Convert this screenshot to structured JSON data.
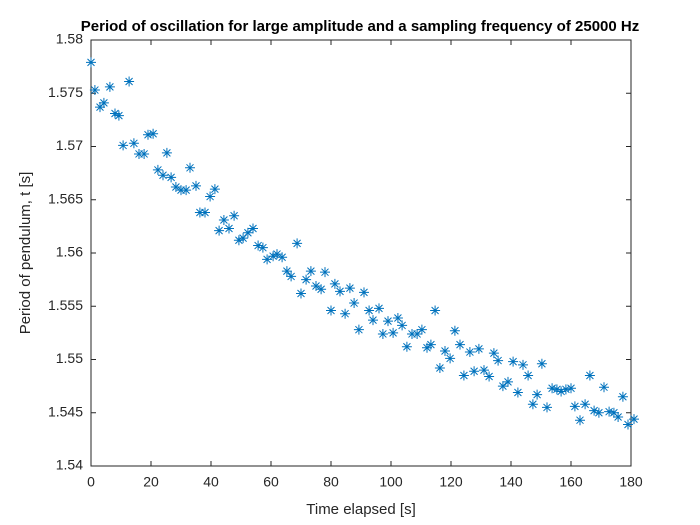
{
  "chart_data": {
    "type": "scatter",
    "title": "Period of oscillation for large amplitude and a sampling frequency of 25000 Hz",
    "x_label": "Time elapsed [s]",
    "y_label": "Period of pendulum, t [s]",
    "xlim": [
      0,
      180
    ],
    "xticks": [
      0,
      20,
      40,
      60,
      80,
      100,
      120,
      140,
      160,
      180
    ],
    "ylim": [
      1.54,
      1.58
    ],
    "yticks": [
      1.54,
      1.545,
      1.55,
      1.555,
      1.56,
      1.565,
      1.57,
      1.575,
      1.58
    ],
    "marker": "asterisk",
    "series": [
      {
        "name": "Period",
        "color": "#0072bd",
        "x": [
          0,
          1.3,
          3,
          4.3,
          6.3,
          8,
          9.3,
          10.7,
          12.7,
          14.3,
          16,
          17.7,
          19,
          20.7,
          22.3,
          24,
          25.3,
          26.7,
          28.3,
          30,
          31.7,
          33,
          35,
          36.3,
          38,
          39.7,
          41.3,
          42.7,
          44.3,
          46,
          47.7,
          49.3,
          50.7,
          52.3,
          54,
          55.7,
          57.3,
          58.7,
          60.7,
          62,
          63.7,
          65.3,
          66.7,
          68.7,
          70,
          71.7,
          73.3,
          75,
          76.7,
          78,
          80,
          81.3,
          83,
          84.7,
          86.3,
          87.7,
          89.3,
          91,
          92.7,
          94,
          96,
          97.3,
          99,
          100.7,
          102.3,
          103.7,
          105.3,
          107,
          108.7,
          110.3,
          112,
          113.3,
          114.7,
          116.3,
          118,
          119.7,
          121.3,
          123,
          124.3,
          126.3,
          127.7,
          129.3,
          131,
          132.7,
          134.3,
          135.7,
          137.3,
          139,
          140.7,
          142.3,
          144,
          145.7,
          147.3,
          148.7,
          150.3,
          152,
          153.7,
          155.3,
          156.7,
          158.3,
          160,
          161.3,
          163,
          164.7,
          166.3,
          167.7,
          169.3,
          171,
          172.7,
          174.3,
          175.7,
          177.3,
          179,
          181
        ],
        "values": [
          1.5779,
          1.5753,
          1.5737,
          1.5741,
          1.5756,
          1.5731,
          1.5729,
          1.5701,
          1.5761,
          1.5703,
          1.5693,
          1.5693,
          1.5711,
          1.5712,
          1.5678,
          1.5673,
          1.5694,
          1.5671,
          1.5662,
          1.5659,
          1.5659,
          1.568,
          1.5663,
          1.5638,
          1.5638,
          1.5653,
          1.566,
          1.5621,
          1.5631,
          1.5623,
          1.5635,
          1.5612,
          1.5614,
          1.5619,
          1.5623,
          1.5607,
          1.5605,
          1.5594,
          1.5597,
          1.5599,
          1.5596,
          1.5583,
          1.5578,
          1.5609,
          1.5562,
          1.5575,
          1.5583,
          1.5569,
          1.5566,
          1.5582,
          1.5546,
          1.5571,
          1.5564,
          1.5543,
          1.5567,
          1.5553,
          1.5528,
          1.5563,
          1.5546,
          1.5537,
          1.5548,
          1.5524,
          1.5536,
          1.5525,
          1.5539,
          1.5532,
          1.5512,
          1.5524,
          1.5524,
          1.5528,
          1.5511,
          1.5514,
          1.5546,
          1.5492,
          1.5508,
          1.5501,
          1.5527,
          1.5514,
          1.5485,
          1.5507,
          1.5489,
          1.551,
          1.549,
          1.5484,
          1.5506,
          1.5499,
          1.5475,
          1.5479,
          1.5498,
          1.5469,
          1.5495,
          1.5485,
          1.5458,
          1.5467,
          1.5496,
          1.5455,
          1.5473,
          1.5472,
          1.547,
          1.5472,
          1.5473,
          1.5456,
          1.5443,
          1.5458,
          1.5485,
          1.5452,
          1.545,
          1.5474,
          1.5451,
          1.545,
          1.5446,
          1.5465,
          1.5439,
          1.5444
        ]
      }
    ]
  }
}
